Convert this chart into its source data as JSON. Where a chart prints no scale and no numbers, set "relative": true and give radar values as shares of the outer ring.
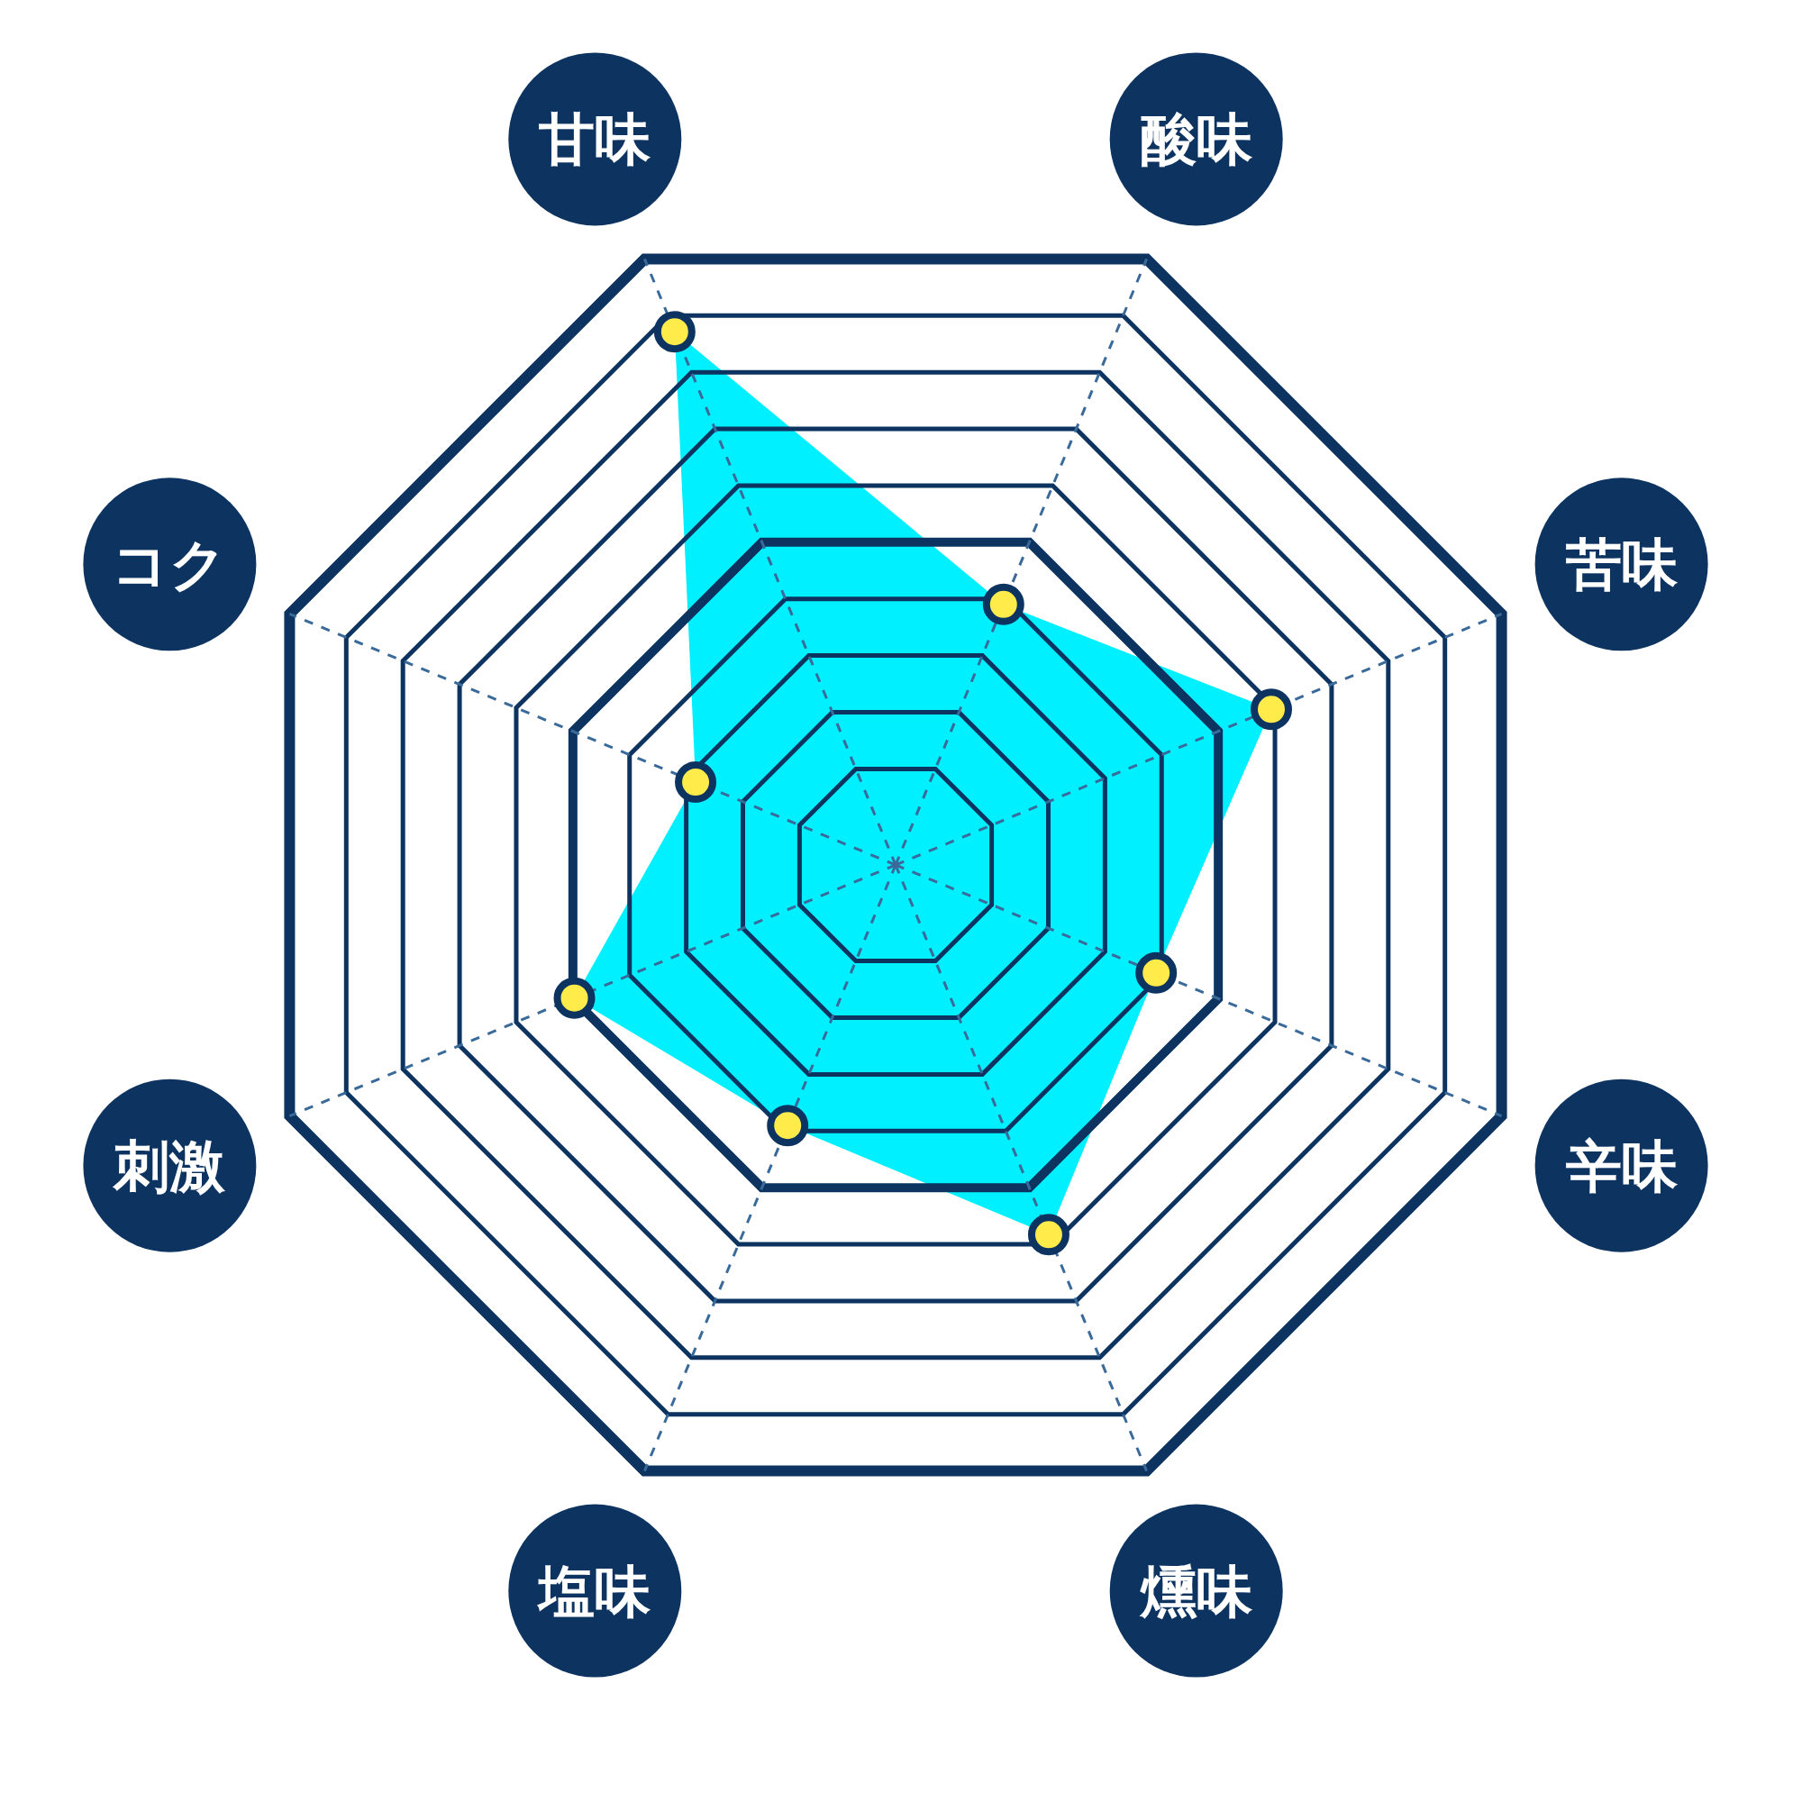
{
  "chart_data": {
    "type": "radar",
    "relative": true,
    "grid": true,
    "marker": "circle",
    "categories": [
      "甘味",
      "酸味",
      "苦味",
      "辛味",
      "燻味",
      "塩味",
      "刺激",
      "コク"
    ],
    "series": [
      {
        "color": "#00f0ff",
        "values": [
          0.88,
          0.43,
          0.62,
          0.43,
          0.61,
          0.43,
          0.53,
          0.33
        ]
      }
    ]
  }
}
